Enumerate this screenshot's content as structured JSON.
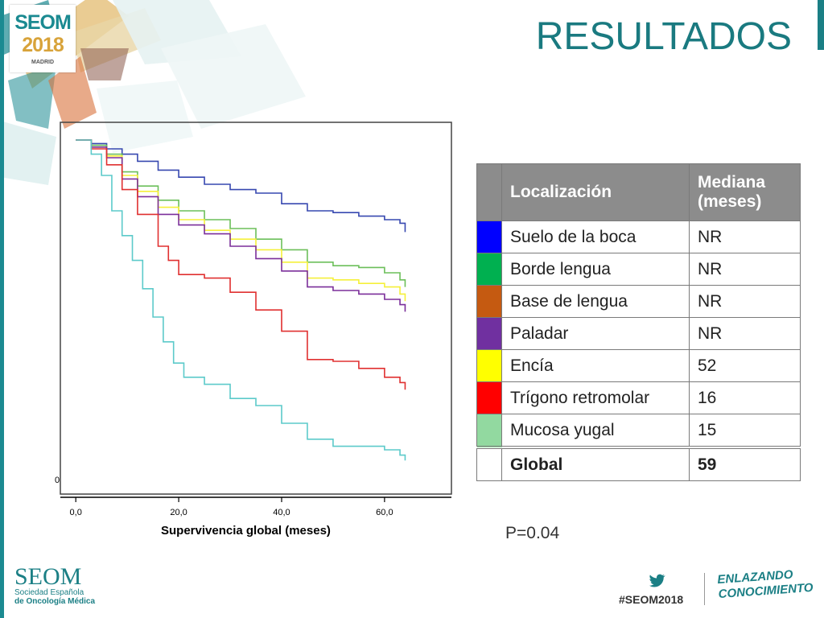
{
  "title": "RESULTADOS",
  "logo": {
    "name": "SEOM",
    "year": "2018",
    "city": "MADRID"
  },
  "chart_data": {
    "type": "line",
    "xlabel": "Supervivencia global (meses)",
    "ylabel": "",
    "xlim": [
      -3,
      73
    ],
    "ylim": [
      0,
      1.05
    ],
    "x_ticks": [
      "0,0",
      "20,0",
      "40,0",
      "60,0"
    ],
    "x_tick_values": [
      0,
      20,
      40,
      60
    ],
    "y_ticks": [
      "0"
    ],
    "series": [
      {
        "color": "#3748b0",
        "points": [
          [
            0,
            1.0
          ],
          [
            3,
            0.99
          ],
          [
            6,
            0.975
          ],
          [
            9,
            0.96
          ],
          [
            12,
            0.94
          ],
          [
            16,
            0.915
          ],
          [
            20,
            0.895
          ],
          [
            25,
            0.875
          ],
          [
            30,
            0.86
          ],
          [
            35,
            0.85
          ],
          [
            40,
            0.82
          ],
          [
            45,
            0.8
          ],
          [
            50,
            0.795
          ],
          [
            55,
            0.785
          ],
          [
            60,
            0.775
          ],
          [
            63,
            0.765
          ],
          [
            64,
            0.74
          ]
        ]
      },
      {
        "color": "#6cbf5a",
        "points": [
          [
            0,
            1.0
          ],
          [
            3,
            0.985
          ],
          [
            6,
            0.96
          ],
          [
            9,
            0.91
          ],
          [
            12,
            0.87
          ],
          [
            16,
            0.83
          ],
          [
            20,
            0.8
          ],
          [
            25,
            0.775
          ],
          [
            30,
            0.75
          ],
          [
            35,
            0.72
          ],
          [
            40,
            0.69
          ],
          [
            45,
            0.655
          ],
          [
            50,
            0.645
          ],
          [
            55,
            0.64
          ],
          [
            60,
            0.625
          ],
          [
            63,
            0.605
          ],
          [
            64,
            0.585
          ]
        ]
      },
      {
        "color": "#f5f03a",
        "points": [
          [
            0,
            1.0
          ],
          [
            3,
            0.98
          ],
          [
            6,
            0.955
          ],
          [
            9,
            0.9
          ],
          [
            12,
            0.855
          ],
          [
            16,
            0.81
          ],
          [
            20,
            0.775
          ],
          [
            25,
            0.745
          ],
          [
            30,
            0.72
          ],
          [
            35,
            0.69
          ],
          [
            40,
            0.655
          ],
          [
            45,
            0.61
          ],
          [
            50,
            0.605
          ],
          [
            55,
            0.595
          ],
          [
            60,
            0.585
          ],
          [
            63,
            0.565
          ],
          [
            64,
            0.545
          ]
        ]
      },
      {
        "color": "#7b2f9a",
        "points": [
          [
            0,
            1.0
          ],
          [
            3,
            0.98
          ],
          [
            6,
            0.95
          ],
          [
            9,
            0.89
          ],
          [
            12,
            0.84
          ],
          [
            16,
            0.79
          ],
          [
            20,
            0.76
          ],
          [
            25,
            0.735
          ],
          [
            30,
            0.7
          ],
          [
            35,
            0.665
          ],
          [
            40,
            0.63
          ],
          [
            45,
            0.585
          ],
          [
            50,
            0.575
          ],
          [
            55,
            0.565
          ],
          [
            60,
            0.55
          ],
          [
            63,
            0.535
          ],
          [
            64,
            0.515
          ]
        ]
      },
      {
        "color": "#e03030",
        "points": [
          [
            0,
            1.0
          ],
          [
            3,
            0.975
          ],
          [
            6,
            0.93
          ],
          [
            9,
            0.86
          ],
          [
            12,
            0.79
          ],
          [
            16,
            0.7
          ],
          [
            18,
            0.66
          ],
          [
            20,
            0.62
          ],
          [
            25,
            0.61
          ],
          [
            30,
            0.57
          ],
          [
            35,
            0.52
          ],
          [
            40,
            0.46
          ],
          [
            45,
            0.38
          ],
          [
            50,
            0.375
          ],
          [
            55,
            0.355
          ],
          [
            60,
            0.33
          ],
          [
            63,
            0.315
          ],
          [
            64,
            0.295
          ]
        ]
      },
      {
        "color": "#5ccaca",
        "points": [
          [
            0,
            1.0
          ],
          [
            3,
            0.96
          ],
          [
            5,
            0.9
          ],
          [
            7,
            0.8
          ],
          [
            9,
            0.73
          ],
          [
            11,
            0.66
          ],
          [
            13,
            0.58
          ],
          [
            15,
            0.5
          ],
          [
            17,
            0.43
          ],
          [
            19,
            0.37
          ],
          [
            21,
            0.33
          ],
          [
            25,
            0.31
          ],
          [
            30,
            0.27
          ],
          [
            35,
            0.25
          ],
          [
            40,
            0.2
          ],
          [
            45,
            0.155
          ],
          [
            50,
            0.135
          ],
          [
            55,
            0.135
          ],
          [
            60,
            0.125
          ],
          [
            63,
            0.11
          ],
          [
            64,
            0.095
          ]
        ]
      }
    ]
  },
  "table": {
    "headers": [
      "Localización",
      "Mediana\n(meses)"
    ],
    "rows": [
      {
        "color": "#0000ff",
        "label": "Suelo de la boca",
        "value": "NR"
      },
      {
        "color": "#00b050",
        "label": "Borde lengua",
        "value": "NR"
      },
      {
        "color": "#c55a11",
        "label": "Base de lengua",
        "value": "NR"
      },
      {
        "color": "#7030a0",
        "label": "Paladar",
        "value": "NR"
      },
      {
        "color": "#ffff00",
        "label": "Encía",
        "value": "52"
      },
      {
        "color": "#ff0000",
        "label": "Trígono retromolar",
        "value": "16"
      },
      {
        "color": "#92d9a0",
        "label": "Mucosa yugal",
        "value": "15"
      }
    ],
    "global": {
      "label": "Global",
      "value": "59"
    }
  },
  "pvalue": "P=0.04",
  "footer": {
    "org": "SEOM",
    "org_line1": "Sociedad Española",
    "org_line2": "de Oncología Médica",
    "hashtag": "#SEOM2018",
    "slogan_line1": "ENLAZANDO",
    "slogan_line2": "CONOCIMIENTO"
  }
}
